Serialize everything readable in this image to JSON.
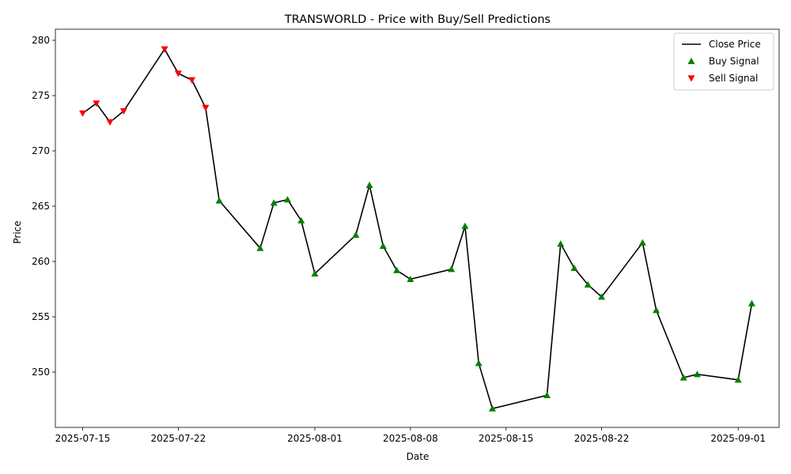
{
  "chart_data": {
    "type": "line",
    "title": "TRANSWORLD - Price with Buy/Sell Predictions",
    "xlabel": "Date",
    "ylabel": "Price",
    "xlim": [
      "2025-07-13",
      "2025-09-04"
    ],
    "ylim": [
      245.0,
      281.0
    ],
    "x_ticks": [
      "2025-07-15",
      "2025-07-22",
      "2025-08-01",
      "2025-08-08",
      "2025-08-15",
      "2025-08-22",
      "2025-09-01"
    ],
    "y_ticks": [
      250,
      255,
      260,
      265,
      270,
      275,
      280
    ],
    "grid": false,
    "legend_position": "top-right",
    "colors": {
      "line": "#000000",
      "buy": "#008000",
      "sell": "#ff0000"
    },
    "series": [
      {
        "name": "Close Price",
        "kind": "line",
        "x": [
          "2025-07-15",
          "2025-07-16",
          "2025-07-17",
          "2025-07-18",
          "2025-07-21",
          "2025-07-22",
          "2025-07-23",
          "2025-07-24",
          "2025-07-25",
          "2025-07-28",
          "2025-07-29",
          "2025-07-30",
          "2025-07-31",
          "2025-08-01",
          "2025-08-04",
          "2025-08-05",
          "2025-08-06",
          "2025-08-07",
          "2025-08-08",
          "2025-08-11",
          "2025-08-12",
          "2025-08-13",
          "2025-08-14",
          "2025-08-18",
          "2025-08-19",
          "2025-08-20",
          "2025-08-21",
          "2025-08-22",
          "2025-08-25",
          "2025-08-26",
          "2025-08-28",
          "2025-08-29",
          "2025-09-01",
          "2025-09-02"
        ],
        "y": [
          273.4,
          274.3,
          272.6,
          273.6,
          279.2,
          277.0,
          276.4,
          273.9,
          265.5,
          261.2,
          265.3,
          265.6,
          263.7,
          258.9,
          262.4,
          266.9,
          261.4,
          259.2,
          258.4,
          259.3,
          263.2,
          250.8,
          246.7,
          247.9,
          261.6,
          259.4,
          257.9,
          256.8,
          261.7,
          255.6,
          249.5,
          249.8,
          249.3,
          256.2
        ]
      },
      {
        "name": "Buy Signal",
        "kind": "scatter",
        "marker": "triangle-up",
        "x": [
          "2025-07-25",
          "2025-07-28",
          "2025-07-29",
          "2025-07-30",
          "2025-07-31",
          "2025-08-01",
          "2025-08-04",
          "2025-08-05",
          "2025-08-06",
          "2025-08-07",
          "2025-08-08",
          "2025-08-11",
          "2025-08-12",
          "2025-08-13",
          "2025-08-14",
          "2025-08-18",
          "2025-08-19",
          "2025-08-20",
          "2025-08-21",
          "2025-08-22",
          "2025-08-25",
          "2025-08-26",
          "2025-08-28",
          "2025-08-29",
          "2025-09-01",
          "2025-09-02"
        ],
        "y": [
          265.5,
          261.2,
          265.3,
          265.6,
          263.7,
          258.9,
          262.4,
          266.9,
          261.4,
          259.2,
          258.4,
          259.3,
          263.2,
          250.8,
          246.7,
          247.9,
          261.6,
          259.4,
          257.9,
          256.8,
          261.7,
          255.6,
          249.5,
          249.8,
          249.3,
          256.2
        ]
      },
      {
        "name": "Sell Signal",
        "kind": "scatter",
        "marker": "triangle-down",
        "x": [
          "2025-07-15",
          "2025-07-16",
          "2025-07-17",
          "2025-07-18",
          "2025-07-21",
          "2025-07-22",
          "2025-07-23",
          "2025-07-24"
        ],
        "y": [
          273.4,
          274.3,
          272.6,
          273.6,
          279.2,
          277.0,
          276.4,
          273.9
        ]
      }
    ]
  }
}
